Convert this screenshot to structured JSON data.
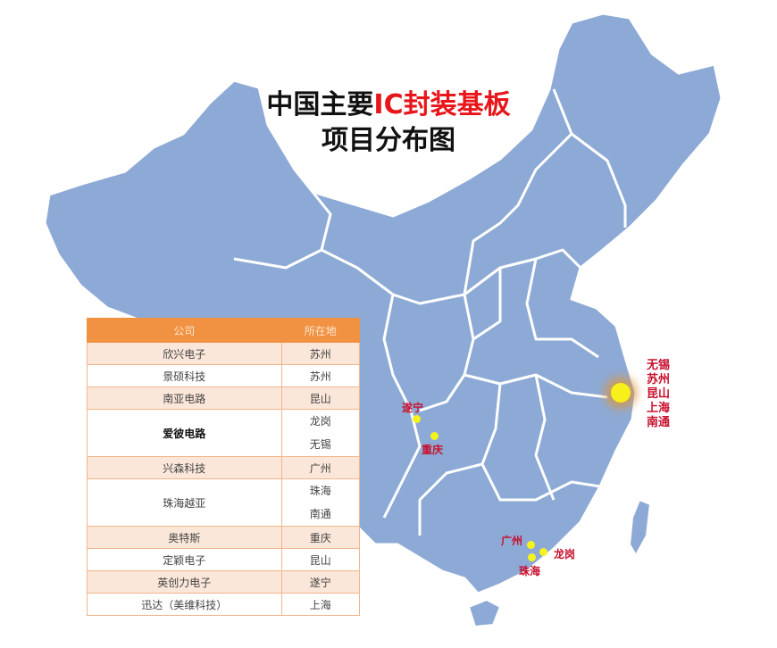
{
  "title": {
    "line1_prefix": "中国主要",
    "line1_highlight": "IC封装基板",
    "line2": "项目分布图",
    "highlight_color": "#e8161a"
  },
  "colors": {
    "map_fill": "#8daad6",
    "border": "#ffffff",
    "table_header": "#f09242",
    "city_label": "#c8102e",
    "marker": "#f6f31c"
  },
  "table": {
    "headers": [
      "公司",
      "所在地"
    ],
    "rows": [
      {
        "company": "欣兴电子",
        "locations": [
          "苏州"
        ]
      },
      {
        "company": "景硕科技",
        "locations": [
          "苏州"
        ]
      },
      {
        "company": "南亚电路",
        "locations": [
          "昆山"
        ]
      },
      {
        "company": "爱彼电路",
        "locations": [
          "龙岗",
          "无锡"
        ]
      },
      {
        "company": "兴森科技",
        "locations": [
          "广州"
        ]
      },
      {
        "company": "珠海越亚",
        "locations": [
          "珠海",
          "南通"
        ]
      },
      {
        "company": "奥特斯",
        "locations": [
          "重庆"
        ]
      },
      {
        "company": "定颖电子",
        "locations": [
          "昆山"
        ]
      },
      {
        "company": "英创力电子",
        "locations": [
          "遂宁"
        ]
      },
      {
        "company": "迅达（美维科技）",
        "locations": [
          "上海"
        ]
      }
    ]
  },
  "markers": {
    "suining": "遂宁",
    "chongqing": "重庆",
    "guangzhou": "广州",
    "longgang": "龙岗",
    "zhuhai": "珠海",
    "east_cluster": [
      "无锡",
      "苏州",
      "昆山",
      "上海",
      "南通"
    ]
  }
}
